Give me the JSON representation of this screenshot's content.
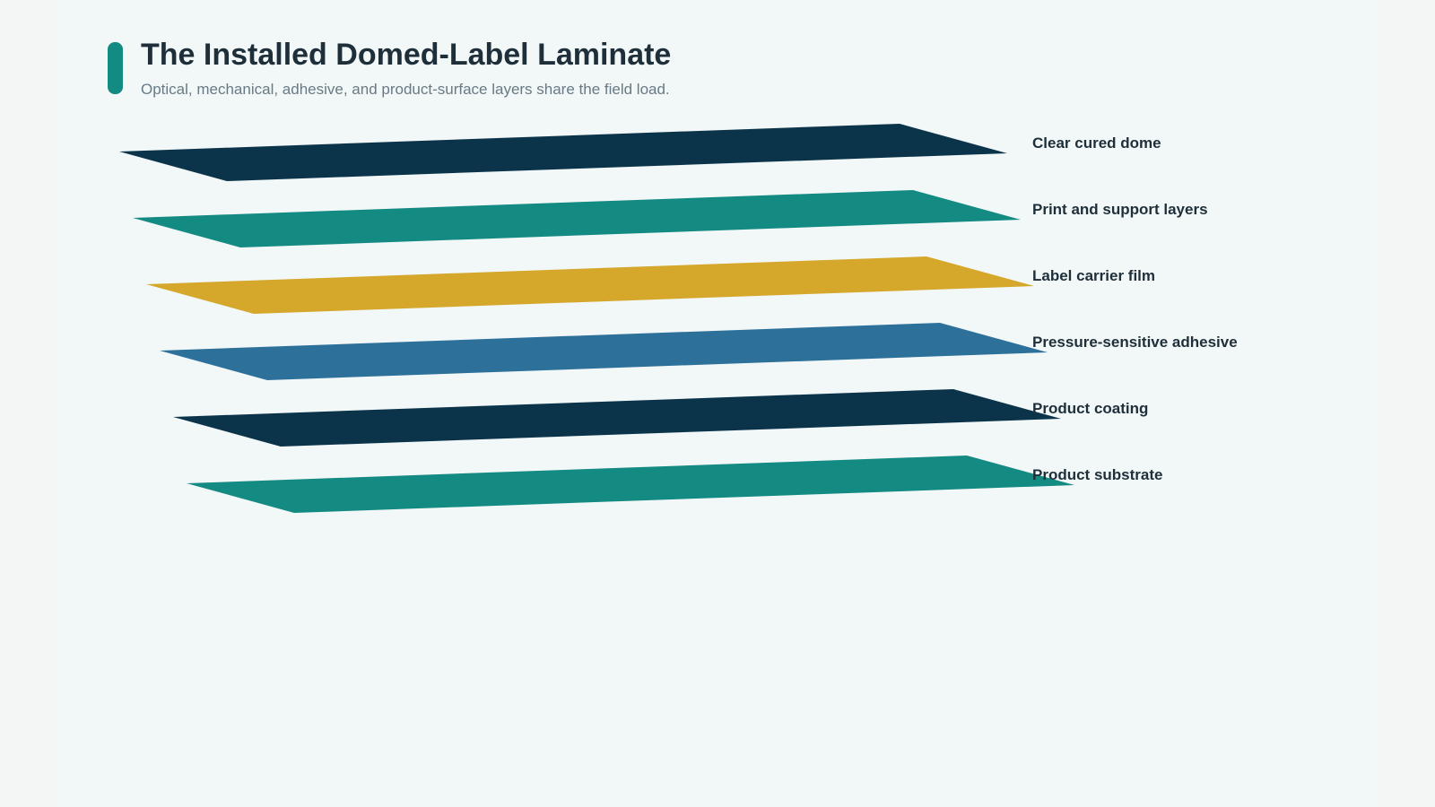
{
  "header": {
    "title": "The Installed Domed-Label Laminate",
    "subtitle": "Optical, mechanical, adhesive, and product-surface layers share the field load."
  },
  "colors": {
    "accent": "#138a82",
    "background": "#f2f7f8",
    "text": "#1e2f3a"
  },
  "layers": [
    {
      "label": "Clear cured dome",
      "color": "#0b344a"
    },
    {
      "label": "Print and support layers",
      "color": "#138a82"
    },
    {
      "label": "Label carrier film",
      "color": "#d5a72b"
    },
    {
      "label": "Pressure-sensitive adhesive",
      "color": "#2d719b"
    },
    {
      "label": "Product coating",
      "color": "#0b344a"
    },
    {
      "label": "Product substrate",
      "color": "#138a82"
    }
  ]
}
